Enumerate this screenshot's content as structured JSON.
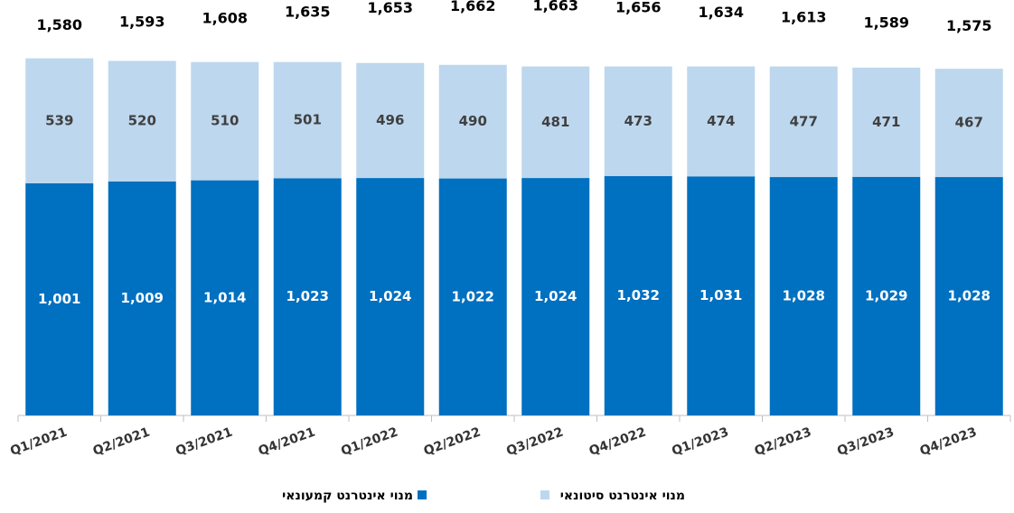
{
  "chart_data": {
    "type": "stacked_bar",
    "categories": [
      "Q1/2021",
      "Q2/2021",
      "Q3/2021",
      "Q4/2021",
      "Q1/2022",
      "Q2/2022",
      "Q3/2022",
      "Q4/2022",
      "Q1/2023",
      "Q2/2023",
      "Q3/2023",
      "Q4/2023"
    ],
    "series": [
      {
        "name": "מנוי אינטרנט קמעונאי",
        "color": "#0070c0",
        "values": [
          1001,
          1009,
          1014,
          1023,
          1024,
          1022,
          1024,
          1032,
          1031,
          1028,
          1029,
          1028
        ],
        "value_labels": [
          "1,001",
          "1,009",
          "1,014",
          "1,023",
          "1,024",
          "1,022",
          "1,024",
          "1,032",
          "1,031",
          "1,028",
          "1,029",
          "1,028"
        ]
      },
      {
        "name": "מנוי אינטרנט סיטונאי",
        "color": "#bdd7ee",
        "values": [
          539,
          520,
          510,
          501,
          496,
          490,
          481,
          473,
          474,
          477,
          471,
          467
        ]
      }
    ],
    "totals": {
      "values": [
        1580,
        1593,
        1608,
        1635,
        1653,
        1662,
        1663,
        1656,
        1634,
        1613,
        1589,
        1575
      ],
      "value_labels": [
        "1,580",
        "1,593",
        "1,608",
        "1,635",
        "1,653",
        "1,662",
        "1,663",
        "1,656",
        "1,634",
        "1,613",
        "1,589",
        "1,575"
      ]
    }
  }
}
